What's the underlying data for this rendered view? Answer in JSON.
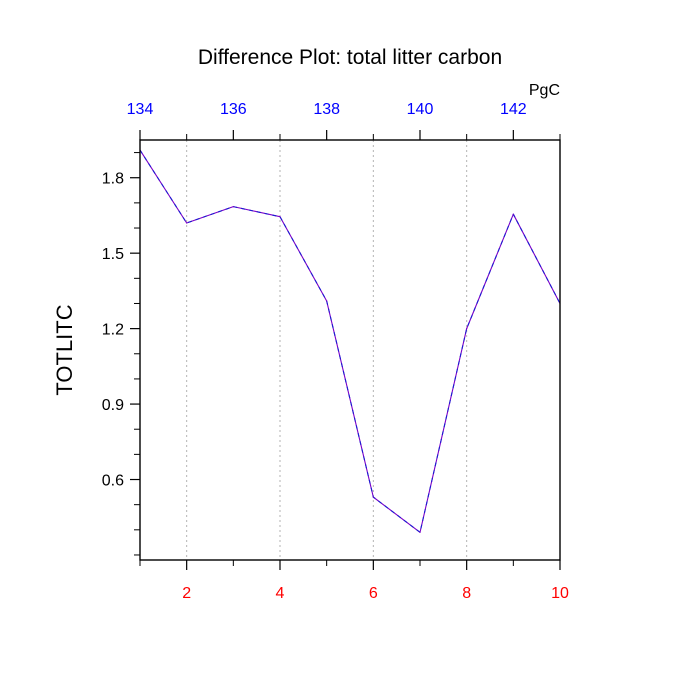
{
  "chart_data": {
    "type": "line",
    "title": "Difference Plot: total litter carbon",
    "ylabel": "TOTLITC",
    "top_axis_unit": "PgC",
    "x": [
      1,
      2,
      3,
      4,
      5,
      6,
      7,
      8,
      9,
      10
    ],
    "xlim": [
      1,
      10
    ],
    "ylim": [
      0.28,
      1.95
    ],
    "x_ticks": [
      2,
      4,
      6,
      8,
      10
    ],
    "x_tick_labels": [
      "2",
      "4",
      "6",
      "8",
      "10"
    ],
    "x_minor_ticks": [
      1,
      3,
      5,
      7,
      9
    ],
    "y_ticks": [
      0.6,
      0.9,
      1.2,
      1.5,
      1.8
    ],
    "y_tick_labels": [
      "0.6",
      "0.9",
      "1.2",
      "1.5",
      "1.8"
    ],
    "y_minor_step": 0.1,
    "top_axis": {
      "lim": [
        134,
        143
      ],
      "ticks": [
        134,
        136,
        138,
        140,
        142
      ],
      "tick_labels": [
        "134",
        "136",
        "138",
        "140",
        "142"
      ]
    },
    "series": [
      {
        "values": [
          1.91,
          1.62,
          1.685,
          1.645,
          1.31,
          0.53,
          0.39,
          1.2,
          1.655,
          1.3
        ]
      }
    ],
    "grid": "dotted vertical at bottom-axis tick positions",
    "colors": {
      "line_primary": "#7a00c8",
      "line_dash": "#1b1bd0",
      "bottom_tick_labels": "#ff0000",
      "top_tick_labels": "#0000ff",
      "axis": "#000000",
      "grid": "#b3b3b3"
    }
  }
}
